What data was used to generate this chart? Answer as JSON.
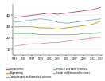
{
  "years": [
    1993,
    1995,
    1997,
    1999,
    2001,
    2003,
    2005,
    2007,
    2009,
    2011,
    2013
  ],
  "series": [
    {
      "name": "Life sciences",
      "color": "#c06090",
      "values": [
        38,
        39,
        40,
        41,
        42,
        41,
        42,
        43,
        44,
        45,
        47
      ]
    },
    {
      "name": "Computer and mathematical sciences",
      "color": "#8ab4d4",
      "values": [
        34,
        35,
        36,
        37,
        36,
        34,
        33,
        34,
        35,
        36,
        37
      ]
    },
    {
      "name": "Engineering",
      "color": "#c8a832",
      "values": [
        30,
        30,
        30,
        29,
        29,
        28,
        29,
        30,
        31,
        32,
        35
      ]
    },
    {
      "name": "Physical and earth sciences",
      "color": "#88c488",
      "values": [
        24,
        24,
        24,
        23,
        23,
        23,
        23,
        23,
        24,
        24,
        25
      ]
    },
    {
      "name": "Social and behavioral sciences",
      "color": "#e8a0a8",
      "values": [
        13,
        14,
        15,
        15,
        16,
        16,
        17,
        18,
        19,
        20,
        21
      ]
    }
  ],
  "ylim": [
    5,
    50
  ],
  "ytick_positions": [
    10,
    20,
    30,
    40
  ],
  "ytick_labels": [
    "10",
    "20",
    "30",
    "40"
  ],
  "bg_color": "#ffffff",
  "legend_entries": [
    {
      "label": "Life sciences",
      "color": "#c06090"
    },
    {
      "label": "Engineering",
      "color": "#c8a832"
    },
    {
      "label": "Computer and mathematical sciences",
      "color": "#8ab4d4"
    },
    {
      "label": "Physical and earth sciences",
      "color": "#88c488"
    },
    {
      "label": "Social and behavioral sciences",
      "color": "#e8a0a8"
    }
  ]
}
